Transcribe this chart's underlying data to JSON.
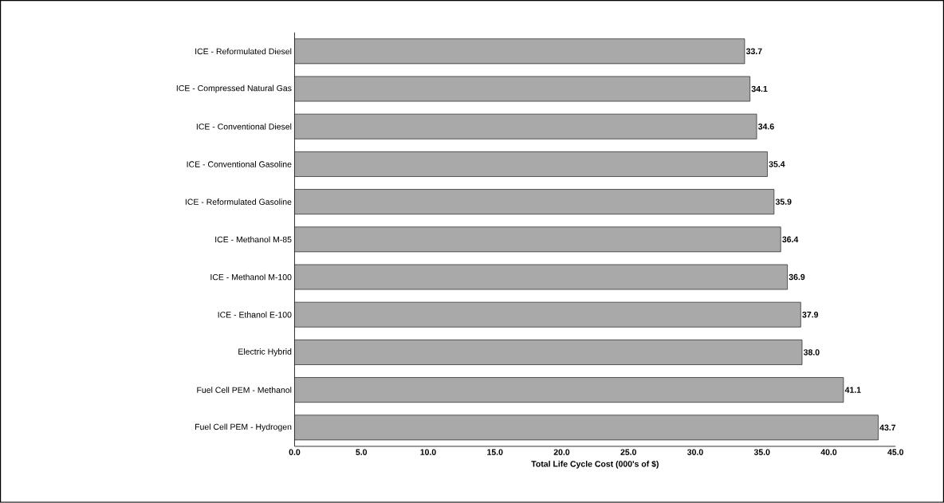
{
  "chart_data": {
    "type": "bar",
    "orientation": "horizontal",
    "categories": [
      "ICE - Reformulated Diesel",
      "ICE - Compressed Natural Gas",
      "ICE - Conventional Diesel",
      "ICE - Conventional Gasoline",
      "ICE - Reformulated Gasoline",
      "ICE - Methanol M-85",
      "ICE - Methanol M-100",
      "ICE - Ethanol E-100",
      "Electric Hybrid",
      "Fuel Cell PEM - Methanol",
      "Fuel Cell PEM - Hydrogen"
    ],
    "values": [
      33.7,
      34.1,
      34.6,
      35.4,
      35.9,
      36.4,
      36.9,
      37.9,
      38.0,
      41.1,
      43.7
    ],
    "color": "#a9a9a9",
    "value_labels": [
      "33.7",
      "34.1",
      "34.6",
      "35.4",
      "35.9",
      "36.4",
      "36.9",
      "37.9",
      "38.0",
      "41.1",
      "43.7"
    ],
    "xlabel": "Total Life Cycle Cost (000's of $)",
    "xlim": [
      0,
      45
    ],
    "xticks": [
      {
        "value": 0,
        "label": "0.0"
      },
      {
        "value": 5,
        "label": "5.0"
      },
      {
        "value": 10,
        "label": "10.0"
      },
      {
        "value": 15,
        "label": "15.0"
      },
      {
        "value": 20,
        "label": "20.0"
      },
      {
        "value": 25,
        "label": "25.0"
      },
      {
        "value": 30,
        "label": "30.0"
      },
      {
        "value": 35,
        "label": "35.0"
      },
      {
        "value": 40,
        "label": "40.0"
      },
      {
        "value": 45,
        "label": "45.0"
      }
    ]
  }
}
